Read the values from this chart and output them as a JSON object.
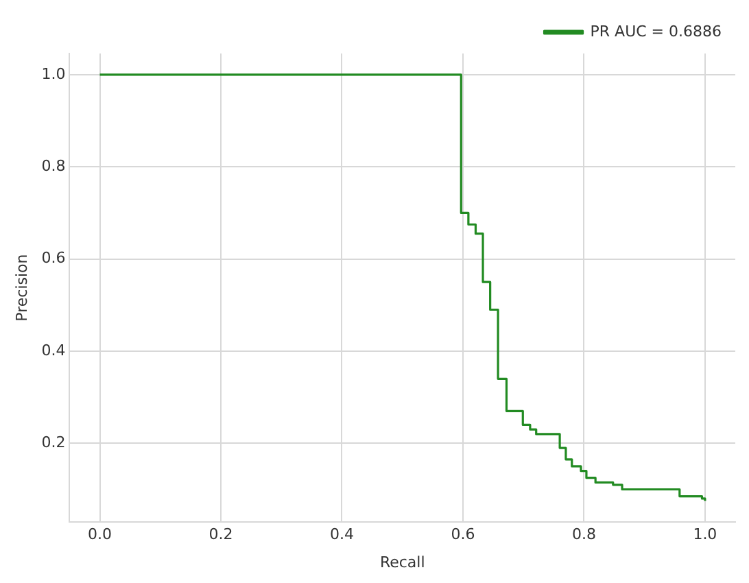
{
  "chart_data": {
    "type": "step",
    "xlabel": "Recall",
    "ylabel": "Precision",
    "xlim": [
      -0.05,
      1.05
    ],
    "ylim": [
      0.029,
      1.046
    ],
    "xticks": [
      {
        "value": 0,
        "label": "0.0"
      },
      0.2,
      0.4,
      0.6,
      0.8,
      {
        "value": 1,
        "label": "1.0"
      }
    ],
    "yticks": [
      0.2,
      0.4,
      0.6,
      0.8,
      {
        "value": 1,
        "label": "1.0"
      }
    ],
    "grid": true,
    "legend": "top right",
    "marker": "none",
    "line_style": "solid",
    "series": [
      {
        "name": "PR AUC = 0.6886",
        "color": "#228b22",
        "x": [
          0,
          0.597,
          0.609,
          0.621,
          0.633,
          0.645,
          0.658,
          0.672,
          0.699,
          0.711,
          0.721,
          0.76,
          0.77,
          0.78,
          0.795,
          0.804,
          0.819,
          0.848,
          0.863,
          0.941,
          0.958,
          0.995,
          1.0
        ],
        "values": [
          1.0,
          0.7,
          0.675,
          0.655,
          0.55,
          0.49,
          0.34,
          0.27,
          0.24,
          0.23,
          0.22,
          0.19,
          0.165,
          0.15,
          0.14,
          0.125,
          0.115,
          0.11,
          0.1,
          0.1,
          0.085,
          0.08,
          0.075
        ]
      }
    ]
  }
}
